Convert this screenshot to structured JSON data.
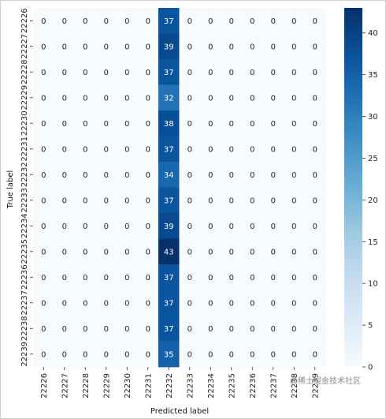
{
  "chart_data": {
    "type": "heatmap",
    "xlabel": "Predicted label",
    "ylabel": "True label",
    "x_categories": [
      "22226",
      "22227",
      "22228",
      "22229",
      "22230",
      "22231",
      "22232",
      "22233",
      "22234",
      "22235",
      "22236",
      "22237",
      "22238",
      "22239"
    ],
    "y_categories": [
      "22226",
      "22227",
      "22228",
      "22229",
      "22230",
      "22231",
      "22232",
      "22233",
      "22234",
      "22235",
      "22236",
      "22237",
      "22238",
      "22239"
    ],
    "predicted_column": "22232",
    "column_values": [
      37,
      39,
      37,
      32,
      38,
      37,
      34,
      37,
      39,
      43,
      37,
      37,
      37,
      35
    ],
    "colorbar": {
      "min": 0,
      "max": 43,
      "ticks": [
        0,
        5,
        10,
        15,
        20,
        25,
        30,
        35,
        40
      ],
      "colormap": "Blues"
    },
    "colors": {
      "low": "#f7fbff",
      "high": "#08306b",
      "text_dark": "#262626",
      "text_light": "#ffffff"
    }
  },
  "watermark": "@稀土掘金技术社区"
}
